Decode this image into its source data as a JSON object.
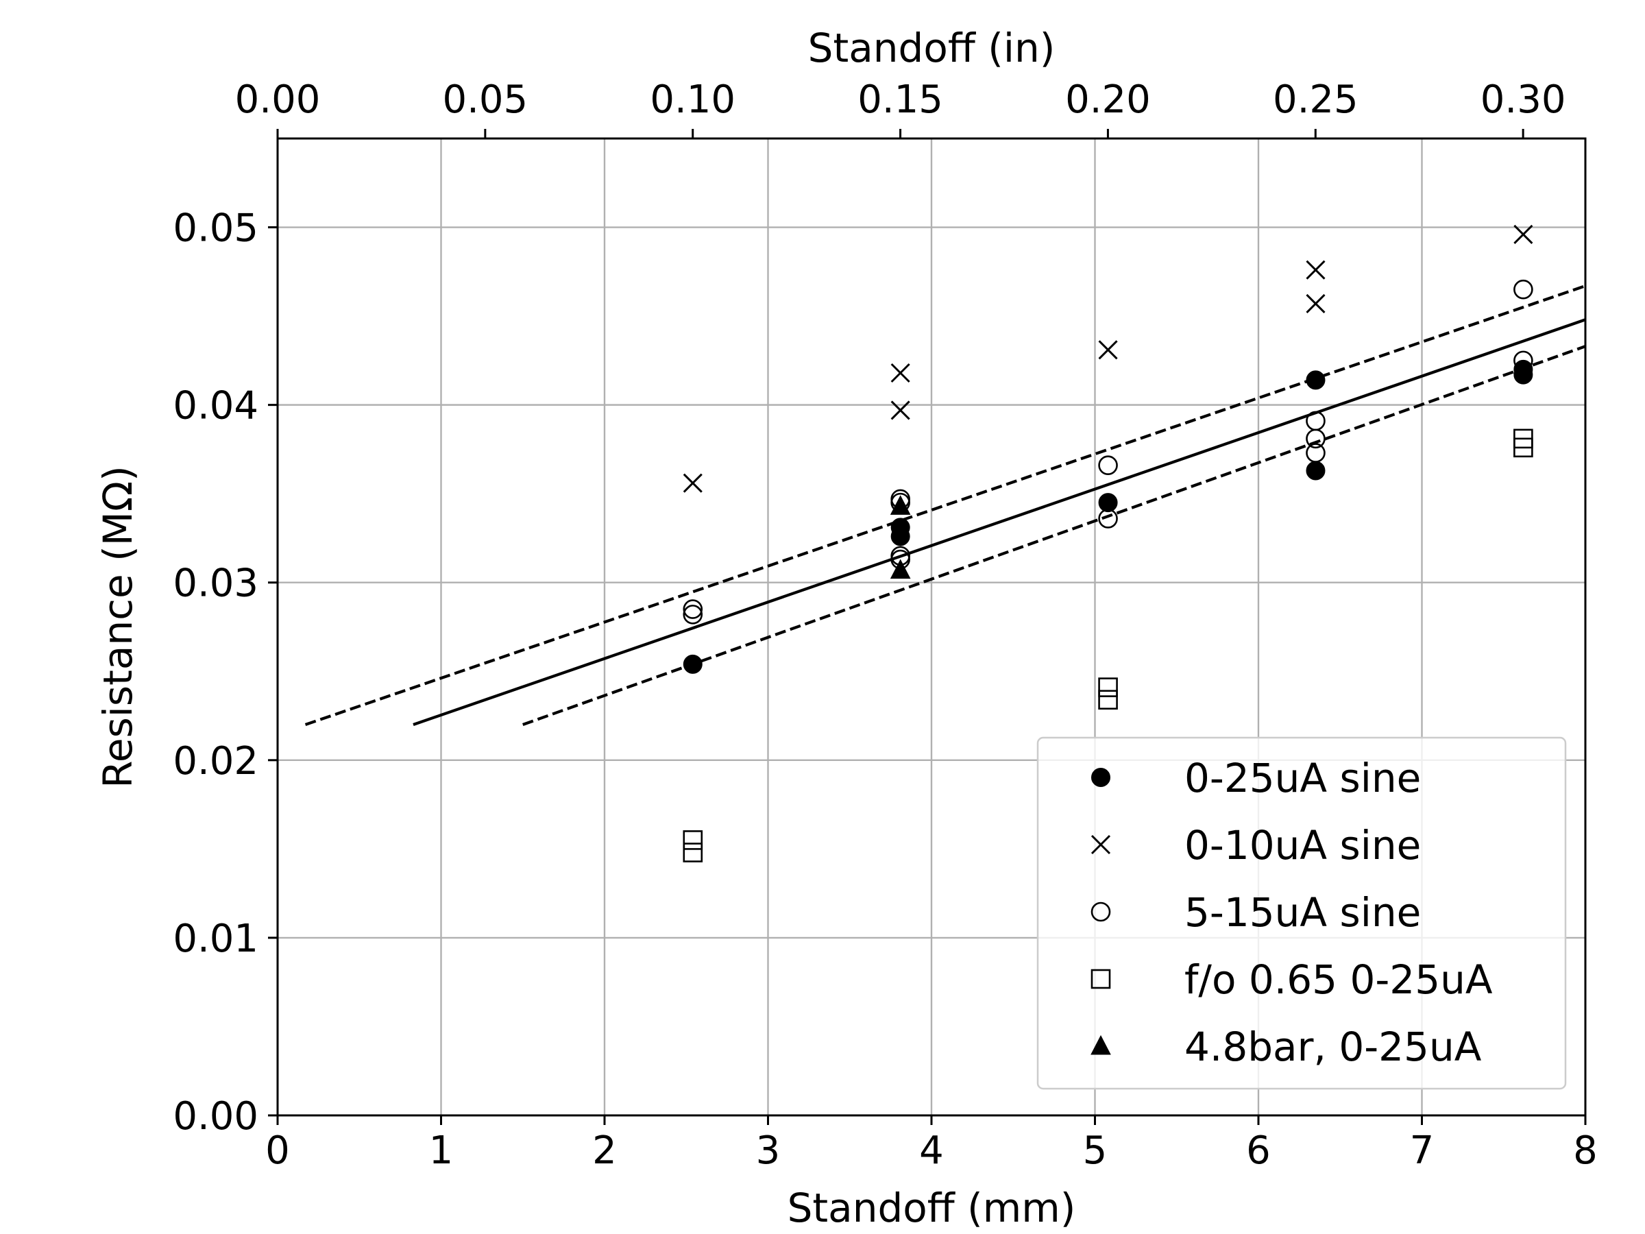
{
  "chart_data": {
    "type": "scatter",
    "title": "",
    "xlabel": "Standoff (mm)",
    "ylabel": "Resistance (MΩ)",
    "x2label": "Standoff (in)",
    "xlim": [
      0,
      8
    ],
    "ylim": [
      0,
      0.055
    ],
    "x2lim": [
      0,
      0.315
    ],
    "xticks": [
      "0",
      "1",
      "2",
      "3",
      "4",
      "5",
      "6",
      "7",
      "8"
    ],
    "xtick_values": [
      0,
      1,
      2,
      3,
      4,
      5,
      6,
      7,
      8
    ],
    "yticks": [
      "0.00",
      "0.01",
      "0.02",
      "0.03",
      "0.04",
      "0.05"
    ],
    "ytick_values": [
      0,
      0.01,
      0.02,
      0.03,
      0.04,
      0.05
    ],
    "x2ticks": [
      "0.00",
      "0.05",
      "0.10",
      "0.15",
      "0.20",
      "0.25",
      "0.30"
    ],
    "x2tick_values": [
      0,
      0.05,
      0.1,
      0.15,
      0.2,
      0.25,
      0.3
    ],
    "grid": true,
    "legend_position": "lower-right",
    "series": [
      {
        "name": "0-25uA sine",
        "marker": "filled-circle",
        "color": "#000000",
        "points": [
          [
            2.54,
            0.0254
          ],
          [
            3.81,
            0.0326
          ],
          [
            3.81,
            0.0331
          ],
          [
            5.08,
            0.0345
          ],
          [
            6.35,
            0.0414
          ],
          [
            6.35,
            0.0363
          ],
          [
            7.62,
            0.0417
          ],
          [
            7.62,
            0.042
          ]
        ]
      },
      {
        "name": "0-10uA sine",
        "marker": "x",
        "color": "#000000",
        "points": [
          [
            2.54,
            0.0356
          ],
          [
            3.81,
            0.0418
          ],
          [
            3.81,
            0.0397
          ],
          [
            5.08,
            0.0431
          ],
          [
            6.35,
            0.0476
          ],
          [
            6.35,
            0.0457
          ],
          [
            7.62,
            0.0496
          ]
        ]
      },
      {
        "name": "5-15uA sine",
        "marker": "open-circle",
        "color": "#000000",
        "points": [
          [
            2.54,
            0.0285
          ],
          [
            2.54,
            0.0282
          ],
          [
            3.81,
            0.0347
          ],
          [
            3.81,
            0.0345
          ],
          [
            3.81,
            0.0315
          ],
          [
            3.81,
            0.0313
          ],
          [
            5.08,
            0.0366
          ],
          [
            5.08,
            0.0336
          ],
          [
            6.35,
            0.0391
          ],
          [
            6.35,
            0.0381
          ],
          [
            6.35,
            0.0373
          ],
          [
            7.62,
            0.0465
          ],
          [
            7.62,
            0.0425
          ]
        ]
      },
      {
        "name": "f/o 0.65 0-25uA",
        "marker": "open-square",
        "color": "#000000",
        "points": [
          [
            2.54,
            0.0155
          ],
          [
            2.54,
            0.0148
          ],
          [
            5.08,
            0.0241
          ],
          [
            5.08,
            0.0234
          ],
          [
            7.62,
            0.0381
          ],
          [
            7.62,
            0.0376
          ]
        ]
      },
      {
        "name": "4.8bar, 0-25uA",
        "marker": "filled-triangle",
        "color": "#000000",
        "points": [
          [
            3.81,
            0.0343
          ],
          [
            3.81,
            0.0307
          ]
        ]
      }
    ],
    "fit_lines": [
      {
        "style": "solid",
        "points": [
          [
            0.83,
            0.022
          ],
          [
            8.0,
            0.0448
          ]
        ]
      },
      {
        "style": "dashed",
        "points": [
          [
            0.17,
            0.022
          ],
          [
            8.0,
            0.0467
          ]
        ]
      },
      {
        "style": "dashed",
        "points": [
          [
            1.5,
            0.022
          ],
          [
            8.0,
            0.0433
          ]
        ]
      }
    ]
  }
}
